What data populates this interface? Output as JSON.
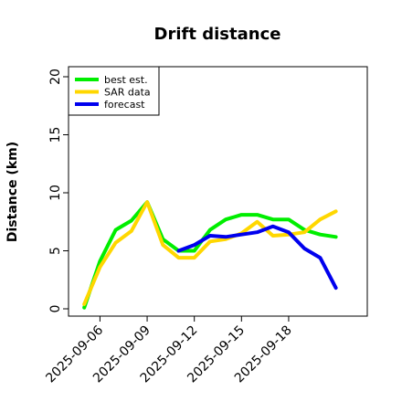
{
  "chart_data": {
    "type": "line",
    "title": "Drift distance",
    "xlabel": "",
    "ylabel": "Distance (km)",
    "ylim": [
      0,
      21
    ],
    "yticks": [
      0,
      5,
      10,
      15,
      20
    ],
    "xlim": [
      "2025-09-04",
      "2025-09-23"
    ],
    "xticks": [
      "2025-09-06",
      "2025-09-09",
      "2025-09-12",
      "2025-09-15",
      "2025-09-18"
    ],
    "grid": false,
    "legend_position": "top-left",
    "x": [
      "2025-09-05",
      "2025-09-06",
      "2025-09-07",
      "2025-09-08",
      "2025-09-09",
      "2025-09-10",
      "2025-09-11",
      "2025-09-12",
      "2025-09-13",
      "2025-09-14",
      "2025-09-15",
      "2025-09-16",
      "2025-09-17",
      "2025-09-18",
      "2025-09-19",
      "2025-09-20",
      "2025-09-21"
    ],
    "series": [
      {
        "name": "best est.",
        "color": "#00ee00",
        "values": [
          0.1,
          4.1,
          6.8,
          7.6,
          9.2,
          6.0,
          5.0,
          5.0,
          6.8,
          7.7,
          8.1,
          8.1,
          7.7,
          7.7,
          6.8,
          6.4,
          6.2
        ]
      },
      {
        "name": "SAR data",
        "color": "#ffd700",
        "values": [
          0.4,
          3.6,
          5.7,
          6.7,
          9.2,
          5.5,
          4.4,
          4.4,
          5.8,
          6.0,
          6.5,
          7.5,
          6.3,
          6.4,
          6.6,
          7.7,
          8.4
        ]
      },
      {
        "name": "forecast",
        "color": "#0000ee",
        "values": [
          null,
          null,
          null,
          null,
          null,
          null,
          5.0,
          5.5,
          6.3,
          6.2,
          6.4,
          6.6,
          7.1,
          6.6,
          5.2,
          4.4,
          1.8
        ]
      }
    ]
  }
}
